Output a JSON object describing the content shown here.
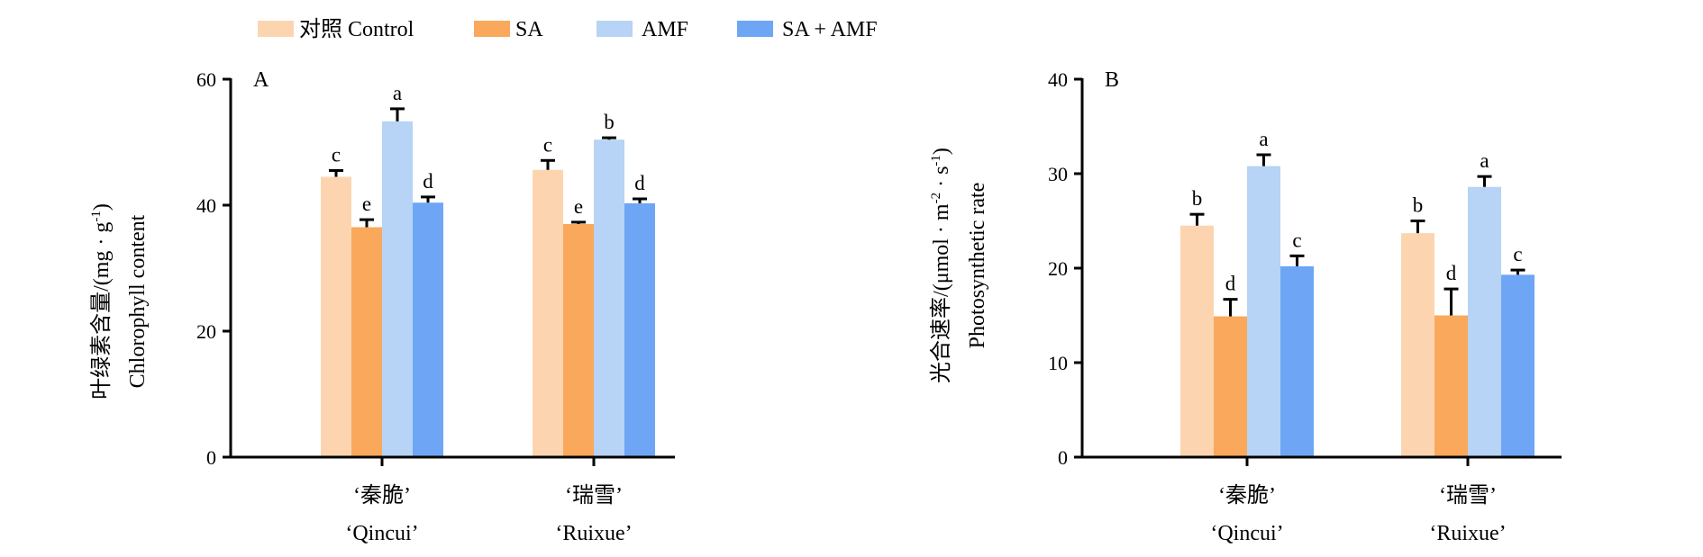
{
  "legend": {
    "entries": [
      {
        "label": "对照 Control",
        "color": "#FCD5B0"
      },
      {
        "label": "SA",
        "color": "#F9A85C"
      },
      {
        "label": "AMF",
        "color": "#B7D3F5"
      },
      {
        "label": "SA + AMF",
        "color": "#6EA6F5"
      }
    ]
  },
  "chart_data": [
    {
      "type": "bar",
      "panel": "A",
      "ylabel_cn": "叶绿素含量/(mg · g",
      "ylabel_unit_sup": "-1",
      "ylabel_close": ")",
      "ylabel_en": "Chlorophyll content",
      "ylim": [
        0,
        60
      ],
      "yticks": [
        0,
        20,
        40,
        60
      ],
      "categories": [
        {
          "cn": "‘秦脆’",
          "en": "‘Qincui’"
        },
        {
          "cn": "‘瑞雪’",
          "en": "‘Ruixue’"
        }
      ],
      "series": [
        {
          "name": "对照 Control",
          "values": [
            44.5,
            45.6
          ],
          "errors": [
            1.0,
            1.5
          ],
          "letters": [
            "c",
            "c"
          ]
        },
        {
          "name": "SA",
          "values": [
            36.5,
            37.0
          ],
          "errors": [
            1.2,
            0.3
          ],
          "letters": [
            "e",
            "e"
          ]
        },
        {
          "name": "AMF",
          "values": [
            53.3,
            50.4
          ],
          "errors": [
            2.0,
            0.3
          ],
          "letters": [
            "a",
            "b"
          ]
        },
        {
          "name": "SA + AMF",
          "values": [
            40.4,
            40.3
          ],
          "errors": [
            0.9,
            0.7
          ],
          "letters": [
            "d",
            "d"
          ]
        }
      ]
    },
    {
      "type": "bar",
      "panel": "B",
      "ylabel_cn": "光合速率/(μmol · m",
      "ylabel_sup1": "-2",
      "ylabel_mid": " · s",
      "ylabel_sup2": "-1",
      "ylabel_close": ")",
      "ylabel_en": "Photosynthetic rate",
      "ylim": [
        0,
        40
      ],
      "yticks": [
        0,
        10,
        20,
        30,
        40
      ],
      "categories": [
        {
          "cn": "‘秦脆’",
          "en": "‘Qincui’"
        },
        {
          "cn": "‘瑞雪’",
          "en": "‘Ruixue’"
        }
      ],
      "series": [
        {
          "name": "对照 Control",
          "values": [
            24.5,
            23.7
          ],
          "errors": [
            1.2,
            1.3
          ],
          "letters": [
            "b",
            "b"
          ]
        },
        {
          "name": "SA",
          "values": [
            14.9,
            15.0
          ],
          "errors": [
            1.8,
            2.8
          ],
          "letters": [
            "d",
            "d"
          ]
        },
        {
          "name": "AMF",
          "values": [
            30.8,
            28.6
          ],
          "errors": [
            1.2,
            1.1
          ],
          "letters": [
            "a",
            "a"
          ]
        },
        {
          "name": "SA + AMF",
          "values": [
            20.2,
            19.3
          ],
          "errors": [
            1.1,
            0.5
          ],
          "letters": [
            "c",
            "c"
          ]
        }
      ]
    }
  ]
}
